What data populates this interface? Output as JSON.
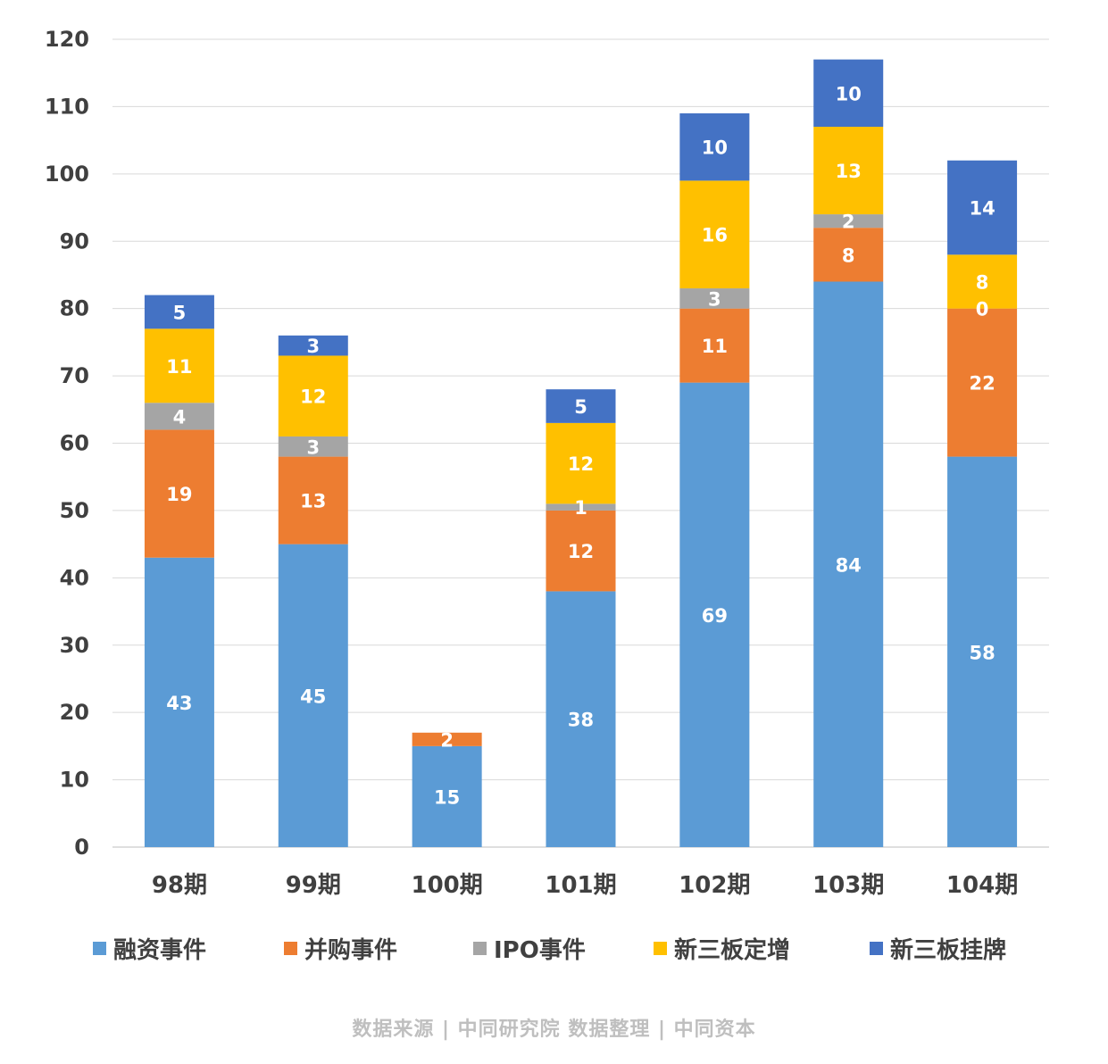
{
  "chart_data": {
    "type": "bar",
    "stacked": true,
    "title": "",
    "xlabel": "",
    "ylabel": "",
    "ylim": [
      0,
      120
    ],
    "yticks": [
      0,
      10,
      20,
      30,
      40,
      50,
      60,
      70,
      80,
      90,
      100,
      110,
      120
    ],
    "grid": true,
    "legend_position": "bottom",
    "categories": [
      "98期",
      "99期",
      "100期",
      "101期",
      "102期",
      "103期",
      "104期"
    ],
    "series": [
      {
        "name": "融资事件",
        "color": "#5B9BD5",
        "values": [
          43,
          45,
          15,
          38,
          69,
          84,
          58
        ]
      },
      {
        "name": "并购事件",
        "color": "#ED7D31",
        "values": [
          19,
          13,
          2,
          12,
          11,
          8,
          22
        ]
      },
      {
        "name": "IPO事件",
        "color": "#A5A5A5",
        "values": [
          4,
          3,
          0,
          1,
          3,
          2,
          0
        ]
      },
      {
        "name": "新三板定增",
        "color": "#FFC000",
        "values": [
          11,
          12,
          0,
          12,
          16,
          13,
          8
        ]
      },
      {
        "name": "新三板挂牌",
        "color": "#4472C4",
        "values": [
          5,
          3,
          0,
          5,
          10,
          10,
          14
        ]
      }
    ],
    "data_labels": [
      [
        "43",
        "45",
        "15",
        "38",
        "69",
        "84",
        "58"
      ],
      [
        "19",
        "13",
        "2",
        "12",
        "11",
        "8",
        "22"
      ],
      [
        "4",
        "3",
        "",
        "1",
        "3",
        "2",
        "0"
      ],
      [
        "11",
        "12",
        "",
        "12",
        "16",
        "13",
        "8"
      ],
      [
        "5",
        "3",
        "",
        "5",
        "10",
        "10",
        "14"
      ]
    ]
  },
  "source_text": "数据来源 | 中同研究院  数据整理 | 中同资本"
}
